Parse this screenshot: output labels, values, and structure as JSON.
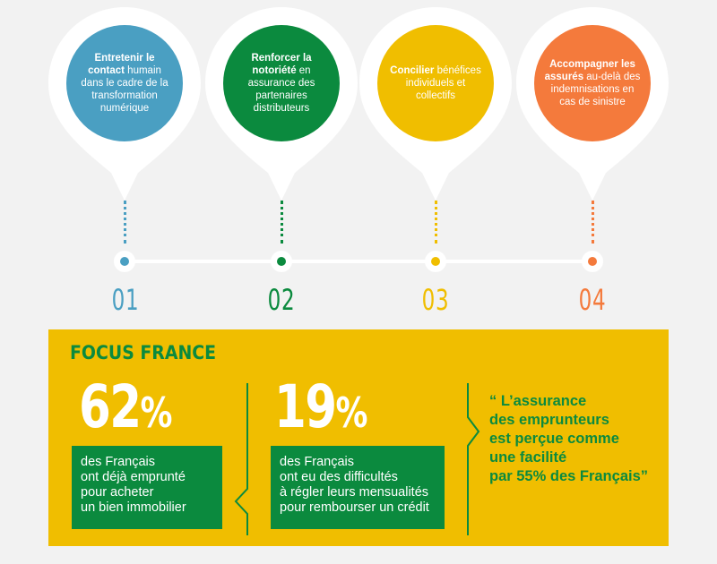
{
  "pins": [
    {
      "bold": "Entretenir le contact",
      "rest": " humain dans le cadre de la transformation numérique",
      "color": "#4a9fc2",
      "number": "01"
    },
    {
      "bold": "Renforcer la notoriété",
      "rest": " en assurance des partenaires distributeurs",
      "color": "#0b8a3e",
      "number": "02"
    },
    {
      "bold": "Concilier",
      "rest": " bénéfices individuels et collectifs",
      "color": "#f0be00",
      "number": "03"
    },
    {
      "bold": "Accompagner les assurés",
      "rest": " au-delà des indemnisations en cas de sinistre",
      "color": "#f47a3c",
      "number": "04"
    }
  ],
  "focus": {
    "title": "FOCUS FRANCE",
    "stats": [
      {
        "value": "62",
        "unit": "%",
        "lines": [
          "des Français",
          "ont déjà emprunté",
          "pour acheter",
          "un bien immobilier"
        ]
      },
      {
        "value": "19",
        "unit": "%",
        "lines": [
          "des Français",
          "ont eu des difficultés",
          "à régler leurs mensualités",
          "pour rembourser un crédit"
        ]
      }
    ],
    "quote_lines": [
      "“ L’assurance",
      "des emprunteurs",
      "est perçue comme",
      "une facilité",
      "par 55% des Français”"
    ]
  }
}
